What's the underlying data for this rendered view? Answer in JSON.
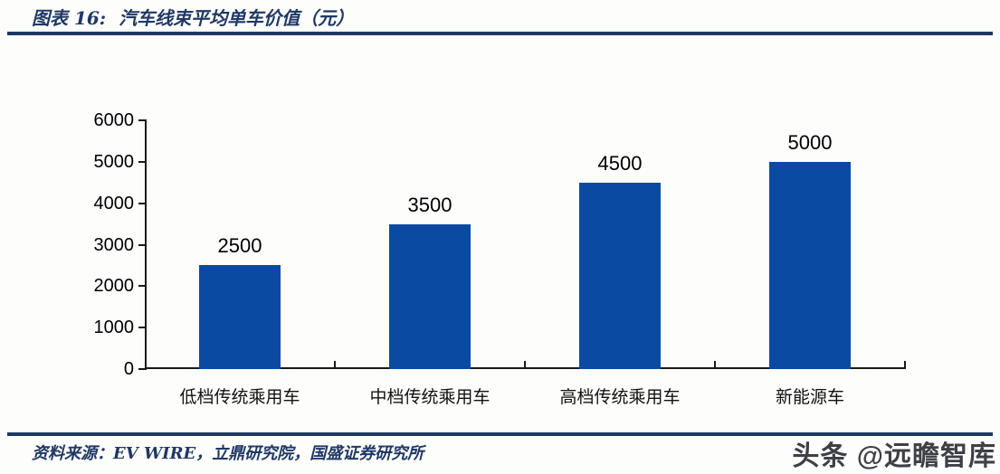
{
  "figure": {
    "label": "图表 16:",
    "title": "汽车线束平均单车价值（元）"
  },
  "chart_data": {
    "type": "bar",
    "title": "汽车线束平均单车价值（元）",
    "categories": [
      "低档传统乘用车",
      "中档传统乘用车",
      "高档传统乘用车",
      "新能源车"
    ],
    "values": [
      2500,
      3500,
      4500,
      5000
    ],
    "data_labels": [
      "2500",
      "3500",
      "4500",
      "5000"
    ],
    "xlabel": "",
    "ylabel": "",
    "ylim": [
      0,
      6000
    ],
    "yticks": [
      0,
      1000,
      2000,
      3000,
      4000,
      5000,
      6000
    ],
    "grid": false,
    "legend": "none",
    "bar_color": "#0b4aa2"
  },
  "source": {
    "text": "资料来源：EV WIRE，立鼎研究院，国盛证券研究所"
  },
  "watermark": {
    "text": "头条 @远瞻智库"
  },
  "colors": {
    "navy": "#1f3864",
    "bar_blue": "#0b4aa2",
    "axis_black": "#1a1a1a",
    "label_black": "#000000",
    "watermark_gray": "#3f4046"
  }
}
